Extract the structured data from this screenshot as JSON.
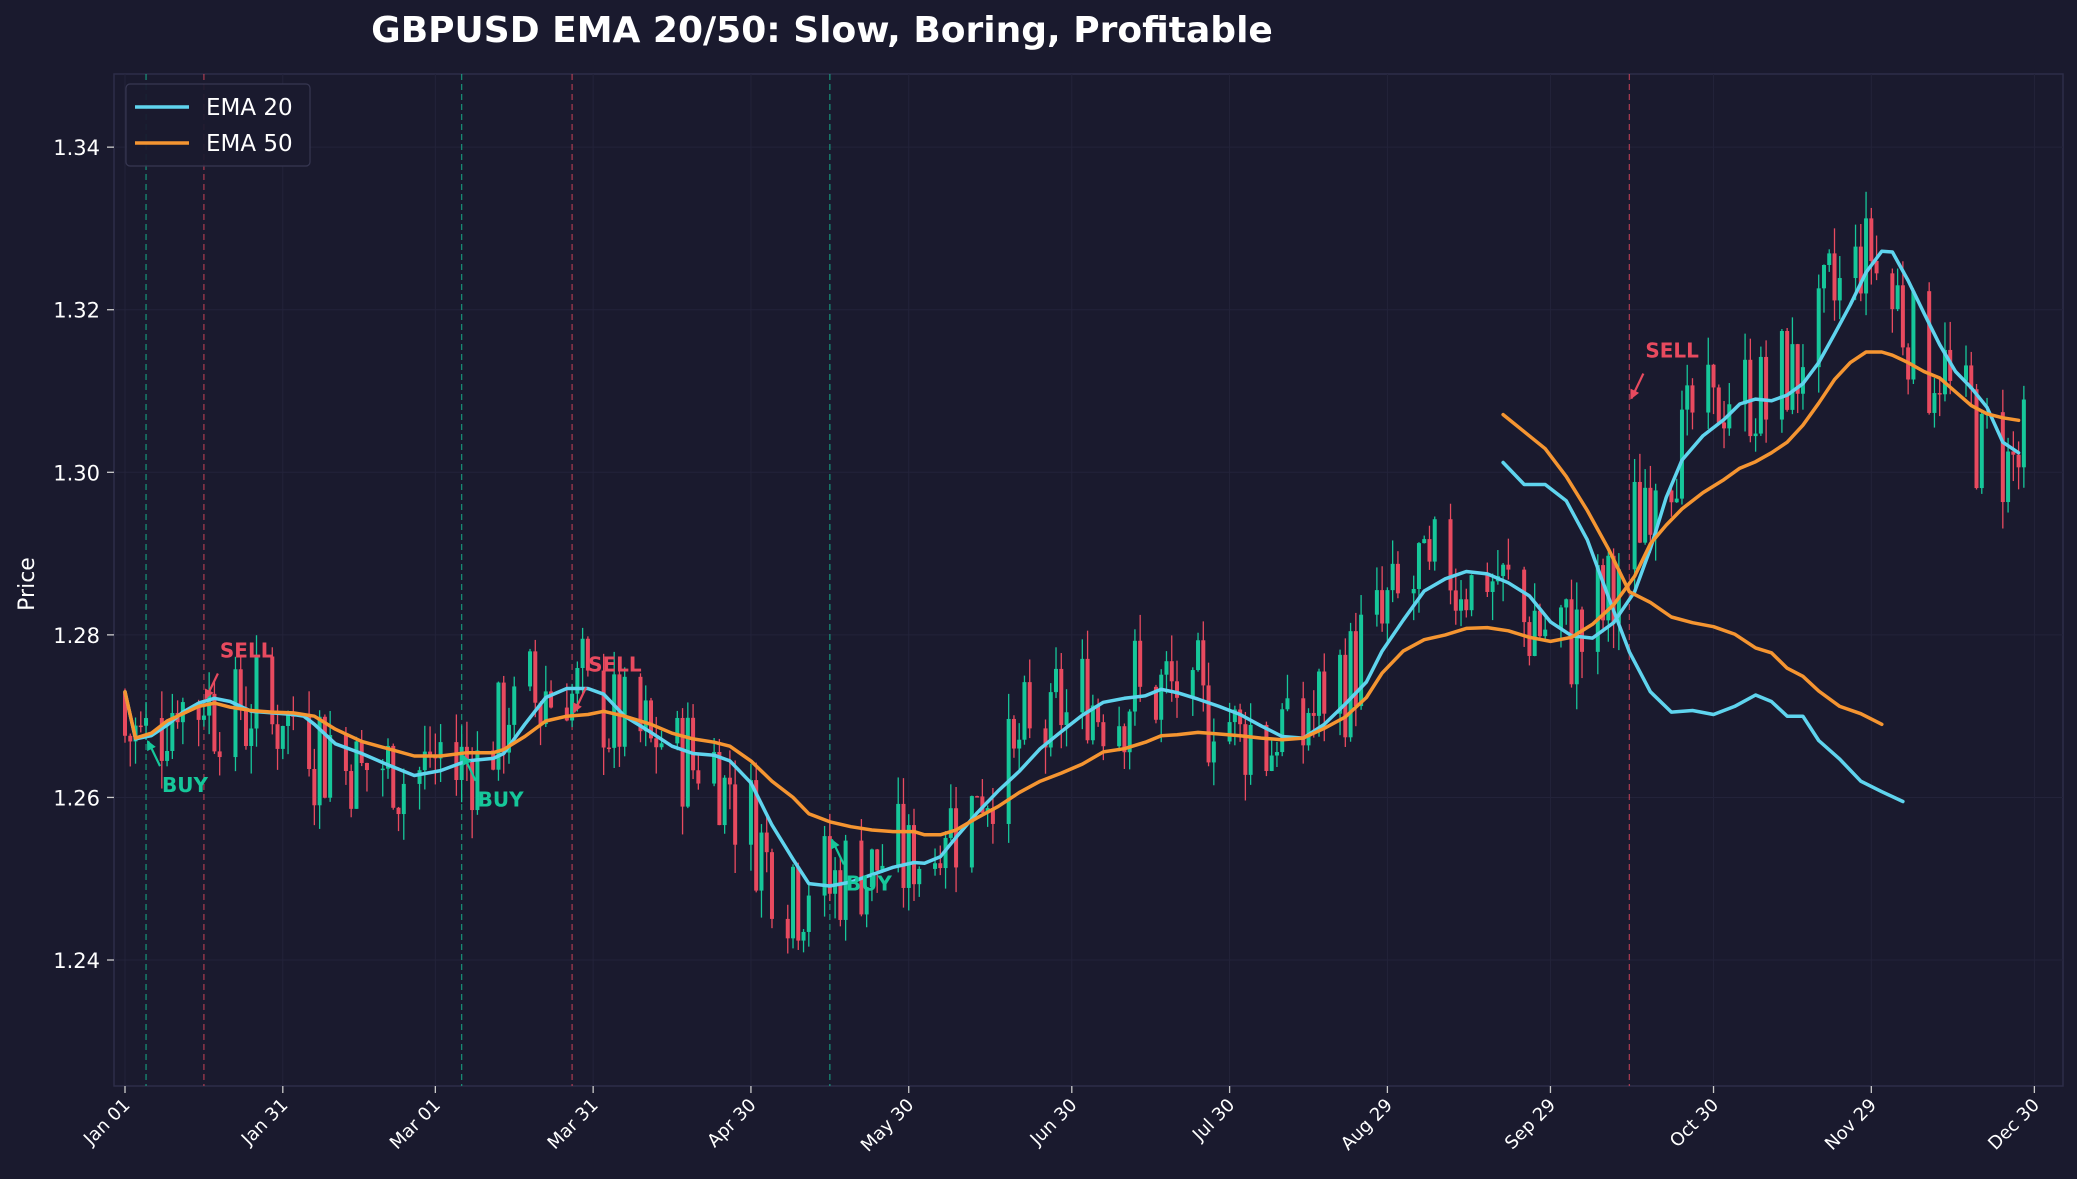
{
  "chart_data": {
    "type": "line",
    "title": "GBPUSD EMA 20/50: Slow, Boring, Profitable",
    "xlabel": "",
    "ylabel": "Price",
    "x_tick_labels": [
      "Jan 01",
      "Jan 31",
      "Mar 01",
      "Mar 31",
      "Apr 30",
      "May 30",
      "Jun 30",
      "Jul 30",
      "Aug 29",
      "Sep 29",
      "Oct 30",
      "Nov 29",
      "Dec 30"
    ],
    "y_tick_labels": [
      "1.24",
      "1.26",
      "1.28",
      "1.30",
      "1.32",
      "1.34"
    ],
    "y_ticks": [
      1.24,
      1.26,
      1.28,
      1.3,
      1.32,
      1.34
    ],
    "ylim": [
      1.2245,
      1.349
    ],
    "xlim_days": [
      -2,
      367
    ],
    "grid": true,
    "legend_position": "top-left",
    "series": [
      {
        "name": "EMA 20",
        "color": "#5fd4ee",
        "points": [
          [
            0,
            1.273
          ],
          [
            2,
            1.2672
          ],
          [
            5,
            1.2676
          ],
          [
            8,
            1.2689
          ],
          [
            11,
            1.2705
          ],
          [
            14,
            1.2716
          ],
          [
            17,
            1.2722
          ],
          [
            20,
            1.2718
          ],
          [
            24,
            1.2706
          ],
          [
            28,
            1.2704
          ],
          [
            32,
            1.2702
          ],
          [
            34,
            1.27
          ],
          [
            36,
            1.269
          ],
          [
            40,
            1.2666
          ],
          [
            45,
            1.2654
          ],
          [
            50,
            1.264
          ],
          [
            55,
            1.2627
          ],
          [
            60,
            1.2633
          ],
          [
            65,
            1.2645
          ],
          [
            70,
            1.2648
          ],
          [
            72,
            1.2654
          ],
          [
            76,
            1.269
          ],
          [
            80,
            1.2723
          ],
          [
            84,
            1.2734
          ],
          [
            88,
            1.2734
          ],
          [
            91,
            1.2727
          ],
          [
            95,
            1.27
          ],
          [
            100,
            1.268
          ],
          [
            104,
            1.2663
          ],
          [
            108,
            1.2654
          ],
          [
            112,
            1.2652
          ],
          [
            115,
            1.2645
          ],
          [
            119,
            1.2618
          ],
          [
            123,
            1.2566
          ],
          [
            127,
            1.2524
          ],
          [
            130,
            1.2494
          ],
          [
            134,
            1.2491
          ],
          [
            138,
            1.2496
          ],
          [
            142,
            1.2505
          ],
          [
            146,
            1.2514
          ],
          [
            150,
            1.252
          ],
          [
            152,
            1.2519
          ],
          [
            155,
            1.2527
          ],
          [
            158,
            1.2551
          ],
          [
            162,
            1.2581
          ],
          [
            166,
            1.2608
          ],
          [
            170,
            1.2632
          ],
          [
            174,
            1.266
          ],
          [
            178,
            1.2681
          ],
          [
            182,
            1.2701
          ],
          [
            186,
            1.2717
          ],
          [
            190,
            1.2722
          ],
          [
            194,
            1.2725
          ],
          [
            197,
            1.2733
          ],
          [
            200,
            1.2729
          ],
          [
            204,
            1.2721
          ],
          [
            208,
            1.2712
          ],
          [
            212,
            1.2702
          ],
          [
            216,
            1.2688
          ],
          [
            220,
            1.2675
          ],
          [
            224,
            1.2673
          ],
          [
            228,
            1.269
          ],
          [
            232,
            1.2715
          ],
          [
            236,
            1.2742
          ],
          [
            239,
            1.278
          ],
          [
            243,
            1.2818
          ],
          [
            247,
            1.2854
          ],
          [
            251,
            1.2869
          ],
          [
            255,
            1.2878
          ],
          [
            259,
            1.2875
          ],
          [
            263,
            1.2864
          ],
          [
            267,
            1.2848
          ],
          [
            271,
            1.2816
          ],
          [
            275,
            1.2799
          ],
          [
            279,
            1.2796
          ],
          [
            283,
            1.2815
          ],
          [
            287,
            1.2853
          ],
          [
            290,
            1.2906
          ],
          [
            293,
            1.2969
          ],
          [
            296,
            1.3015
          ],
          [
            300,
            1.3045
          ],
          [
            304,
            1.3065
          ],
          [
            307,
            1.3084
          ],
          [
            310,
            1.309
          ],
          [
            313,
            1.3088
          ],
          [
            316,
            1.3095
          ],
          [
            319,
            1.3109
          ],
          [
            322,
            1.3135
          ],
          [
            325,
            1.317
          ],
          [
            328,
            1.3206
          ],
          [
            331,
            1.3246
          ],
          [
            334,
            1.3272
          ],
          [
            336,
            1.3271
          ],
          [
            339,
            1.3236
          ],
          [
            342,
            1.3196
          ],
          [
            345,
            1.3157
          ],
          [
            348,
            1.3124
          ],
          [
            351,
            1.3104
          ],
          [
            354,
            1.308
          ],
          [
            357,
            1.3037
          ],
          [
            360,
            1.3024
          ]
        ],
        "points_b": [
          [
            262,
            1.3012
          ],
          [
            266,
            1.2985
          ],
          [
            270,
            1.2985
          ],
          [
            274,
            1.2965
          ],
          [
            278,
            1.2917
          ],
          [
            282,
            1.2847
          ],
          [
            286,
            1.2779
          ],
          [
            290,
            1.273
          ],
          [
            294,
            1.2705
          ],
          [
            298,
            1.2707
          ],
          [
            302,
            1.2702
          ],
          [
            306,
            1.2712
          ],
          [
            310,
            1.2726
          ],
          [
            313,
            1.2718
          ],
          [
            316,
            1.27
          ],
          [
            319,
            1.27
          ],
          [
            322,
            1.267
          ],
          [
            326,
            1.2647
          ],
          [
            330,
            1.262
          ],
          [
            334,
            1.2607
          ],
          [
            338,
            1.2595
          ]
        ]
      },
      {
        "name": "EMA 50",
        "color": "#f59531",
        "points": [
          [
            0,
            1.273
          ],
          [
            2,
            1.2673
          ],
          [
            5,
            1.2679
          ],
          [
            8,
            1.2694
          ],
          [
            11,
            1.2703
          ],
          [
            14,
            1.2712
          ],
          [
            17,
            1.2716
          ],
          [
            20,
            1.2711
          ],
          [
            24,
            1.2707
          ],
          [
            28,
            1.2705
          ],
          [
            32,
            1.2704
          ],
          [
            36,
            1.27
          ],
          [
            40,
            1.2684
          ],
          [
            45,
            1.2669
          ],
          [
            50,
            1.266
          ],
          [
            55,
            1.2651
          ],
          [
            60,
            1.2651
          ],
          [
            65,
            1.2655
          ],
          [
            70,
            1.2655
          ],
          [
            72,
            1.2659
          ],
          [
            76,
            1.2675
          ],
          [
            80,
            1.2694
          ],
          [
            84,
            1.27
          ],
          [
            88,
            1.2702
          ],
          [
            91,
            1.2706
          ],
          [
            95,
            1.27
          ],
          [
            100,
            1.269
          ],
          [
            104,
            1.2679
          ],
          [
            108,
            1.2672
          ],
          [
            112,
            1.2668
          ],
          [
            115,
            1.2663
          ],
          [
            119,
            1.2645
          ],
          [
            123,
            1.262
          ],
          [
            127,
            1.26
          ],
          [
            130,
            1.258
          ],
          [
            134,
            1.257
          ],
          [
            138,
            1.2564
          ],
          [
            142,
            1.256
          ],
          [
            146,
            1.2558
          ],
          [
            150,
            1.2558
          ],
          [
            152,
            1.2554
          ],
          [
            155,
            1.2554
          ],
          [
            158,
            1.256
          ],
          [
            162,
            1.2575
          ],
          [
            166,
            1.2589
          ],
          [
            170,
            1.2606
          ],
          [
            174,
            1.262
          ],
          [
            178,
            1.263
          ],
          [
            182,
            1.2641
          ],
          [
            186,
            1.2656
          ],
          [
            190,
            1.266
          ],
          [
            194,
            1.2668
          ],
          [
            197,
            1.2676
          ],
          [
            200,
            1.2677
          ],
          [
            204,
            1.268
          ],
          [
            208,
            1.2678
          ],
          [
            212,
            1.2676
          ],
          [
            216,
            1.2673
          ],
          [
            220,
            1.2671
          ],
          [
            224,
            1.2673
          ],
          [
            228,
            1.2685
          ],
          [
            232,
            1.2699
          ],
          [
            236,
            1.2723
          ],
          [
            239,
            1.2753
          ],
          [
            243,
            1.278
          ],
          [
            247,
            1.2794
          ],
          [
            251,
            1.28
          ],
          [
            255,
            1.2808
          ],
          [
            259,
            1.2809
          ],
          [
            263,
            1.2805
          ],
          [
            267,
            1.2797
          ],
          [
            271,
            1.2792
          ],
          [
            275,
            1.2797
          ],
          [
            279,
            1.2813
          ],
          [
            283,
            1.2837
          ],
          [
            287,
            1.2872
          ],
          [
            290,
            1.2912
          ],
          [
            293,
            1.2935
          ],
          [
            296,
            1.2955
          ],
          [
            300,
            1.2975
          ],
          [
            304,
            1.2991
          ],
          [
            307,
            1.3005
          ],
          [
            310,
            1.3013
          ],
          [
            313,
            1.3024
          ],
          [
            316,
            1.3037
          ],
          [
            319,
            1.3058
          ],
          [
            322,
            1.3085
          ],
          [
            325,
            1.3114
          ],
          [
            328,
            1.3135
          ],
          [
            331,
            1.3148
          ],
          [
            334,
            1.3148
          ],
          [
            336,
            1.3144
          ],
          [
            339,
            1.3135
          ],
          [
            342,
            1.3124
          ],
          [
            345,
            1.3116
          ],
          [
            348,
            1.3099
          ],
          [
            351,
            1.3082
          ],
          [
            354,
            1.3072
          ],
          [
            357,
            1.3067
          ],
          [
            360,
            1.3064
          ]
        ],
        "points_b": [
          [
            262,
            1.3071
          ],
          [
            266,
            1.305
          ],
          [
            270,
            1.3029
          ],
          [
            274,
            1.2995
          ],
          [
            278,
            1.2953
          ],
          [
            282,
            1.2906
          ],
          [
            286,
            1.2853
          ],
          [
            290,
            1.284
          ],
          [
            294,
            1.2822
          ],
          [
            298,
            1.2815
          ],
          [
            302,
            1.281
          ],
          [
            306,
            1.2801
          ],
          [
            310,
            1.2784
          ],
          [
            313,
            1.2778
          ],
          [
            316,
            1.2759
          ],
          [
            319,
            1.2749
          ],
          [
            322,
            1.2731
          ],
          [
            326,
            1.2712
          ],
          [
            330,
            1.2703
          ],
          [
            334,
            1.269
          ]
        ]
      }
    ],
    "signals": [
      {
        "label": "BUY",
        "type": "buy",
        "day": 4,
        "price": 1.2673
      },
      {
        "label": "SELL",
        "type": "sell",
        "day": 15,
        "price": 1.2718
      },
      {
        "label": "BUY",
        "type": "buy",
        "day": 64,
        "price": 1.2655
      },
      {
        "label": "SELL",
        "type": "sell",
        "day": 85,
        "price": 1.2701
      },
      {
        "label": "BUY",
        "type": "buy",
        "day": 134,
        "price": 1.2552
      },
      {
        "label": "SELL",
        "type": "sell",
        "day": 286,
        "price": 1.3087
      }
    ],
    "candles_note": "OHLC candlesticks plotted behind the EMA lines; up candles teal, down candles red",
    "up_color": "#16c79a",
    "down_color": "#e84a5f"
  }
}
